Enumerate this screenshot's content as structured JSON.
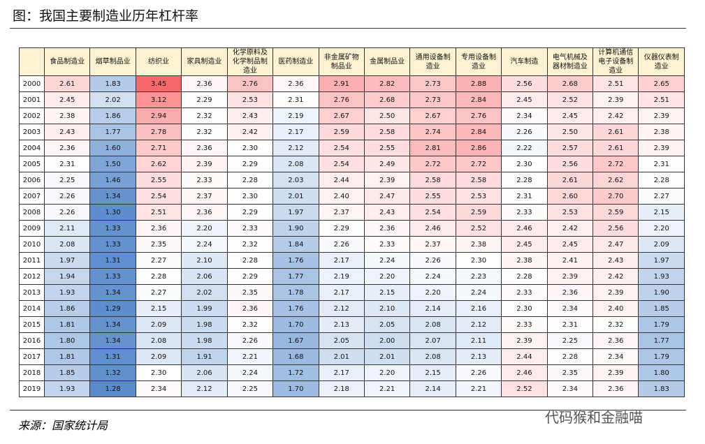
{
  "header": {
    "title": "图：我国主要制造业历年杠杆率"
  },
  "table": {
    "columns": [
      "食品制造业",
      "烟草制品业",
      "纺织业",
      "家具制造业",
      "化学原料及化学制品制造业",
      "医药制造业",
      "非金属矿物制品业",
      "金属制品业",
      "通用设备制造业",
      "专用设备制造业",
      "汽车制造",
      "电气机械及器材制造业",
      "计算机通信电子设备制造业",
      "仪器仪表制造业"
    ],
    "rows": [
      [
        "2000",
        "2.61",
        "1.83",
        "3.45",
        "2.36",
        "2.76",
        "2.36",
        "2.91",
        "2.82",
        "2.73",
        "2.88",
        "2.56",
        "2.68",
        "2.51",
        "2.65"
      ],
      [
        "2001",
        "2.45",
        "2.02",
        "3.12",
        "2.29",
        "2.53",
        "2.31",
        "2.76",
        "2.68",
        "2.73",
        "2.84",
        "2.45",
        "2.52",
        "2.39",
        "2.51"
      ],
      [
        "2002",
        "2.38",
        "1.86",
        "2.94",
        "2.32",
        "2.43",
        "2.19",
        "2.67",
        "2.50",
        "2.67",
        "2.76",
        "2.34",
        "2.45",
        "2.42",
        "2.39"
      ],
      [
        "2003",
        "2.43",
        "1.77",
        "2.78",
        "2.32",
        "2.42",
        "2.17",
        "2.59",
        "2.58",
        "2.74",
        "2.84",
        "2.26",
        "2.50",
        "2.61",
        "2.38"
      ],
      [
        "2004",
        "2.36",
        "1.60",
        "2.71",
        "2.36",
        "2.30",
        "2.12",
        "2.54",
        "2.55",
        "2.81",
        "2.86",
        "2.22",
        "2.57",
        "2.61",
        "2.39"
      ],
      [
        "2005",
        "2.31",
        "1.50",
        "2.62",
        "2.39",
        "2.29",
        "2.08",
        "2.54",
        "2.49",
        "2.72",
        "2.72",
        "2.30",
        "2.56",
        "2.72",
        "2.31"
      ],
      [
        "2006",
        "2.25",
        "1.46",
        "2.55",
        "2.33",
        "2.28",
        "2.03",
        "2.44",
        "2.39",
        "2.58",
        "2.58",
        "2.28",
        "2.61",
        "2.62",
        "2.28"
      ],
      [
        "2007",
        "2.26",
        "1.34",
        "2.54",
        "2.37",
        "2.30",
        "2.01",
        "2.40",
        "2.47",
        "2.55",
        "2.53",
        "2.31",
        "2.60",
        "2.70",
        "2.27"
      ],
      [
        "2008",
        "2.26",
        "1.30",
        "2.51",
        "2.36",
        "2.29",
        "1.97",
        "2.37",
        "2.43",
        "2.54",
        "2.59",
        "2.33",
        "2.53",
        "2.59",
        "2.15"
      ],
      [
        "2009",
        "2.11",
        "1.33",
        "2.36",
        "2.20",
        "2.33",
        "1.90",
        "2.29",
        "2.36",
        "2.46",
        "2.52",
        "2.46",
        "2.42",
        "2.56",
        "2.20"
      ],
      [
        "2010",
        "2.08",
        "1.33",
        "2.35",
        "2.24",
        "2.32",
        "1.84",
        "2.26",
        "2.33",
        "2.37",
        "2.38",
        "2.45",
        "2.45",
        "2.47",
        "2.09"
      ],
      [
        "2011",
        "1.97",
        "1.31",
        "2.27",
        "2.10",
        "2.28",
        "1.76",
        "2.17",
        "2.24",
        "2.26",
        "2.30",
        "2.38",
        "2.41",
        "2.43",
        "1.97"
      ],
      [
        "2012",
        "1.94",
        "1.33",
        "2.28",
        "2.06",
        "2.29",
        "1.77",
        "2.19",
        "2.20",
        "2.24",
        "2.23",
        "2.28",
        "2.39",
        "2.42",
        "1.93"
      ],
      [
        "2013",
        "1.93",
        "1.34",
        "2.27",
        "2.02",
        "2.35",
        "1.78",
        "2.17",
        "2.15",
        "2.20",
        "2.24",
        "2.33",
        "2.36",
        "2.39",
        "1.90"
      ],
      [
        "2014",
        "1.86",
        "1.29",
        "2.15",
        "1.99",
        "2.36",
        "1.76",
        "2.12",
        "2.10",
        "2.14",
        "2.16",
        "2.30",
        "2.34",
        "2.40",
        "1.85"
      ],
      [
        "2015",
        "1.81",
        "1.34",
        "2.09",
        "1.98",
        "2.32",
        "1.70",
        "2.13",
        "2.05",
        "2.08",
        "2.12",
        "2.33",
        "2.31",
        "2.32",
        "1.79"
      ],
      [
        "2016",
        "1.80",
        "1.34",
        "2.08",
        "1.98",
        "2.26",
        "1.67",
        "2.05",
        "2.00",
        "2.07",
        "2.11",
        "2.39",
        "2.25",
        "2.36",
        "1.77"
      ],
      [
        "2017",
        "1.81",
        "1.31",
        "2.09",
        "1.91",
        "2.21",
        "1.68",
        "2.01",
        "2.01",
        "2.08",
        "2.13",
        "2.44",
        "2.28",
        "2.34",
        "1.79"
      ],
      [
        "2018",
        "1.85",
        "1.32",
        "2.30",
        "2.06",
        "2.24",
        "1.72",
        "2.17",
        "2.20",
        "2.15",
        "2.26",
        "2.46",
        "2.35",
        "2.39",
        "1.80"
      ],
      [
        "2019",
        "1.93",
        "1.28",
        "2.34",
        "2.12",
        "2.25",
        "1.70",
        "2.18",
        "2.21",
        "2.14",
        "2.21",
        "2.52",
        "2.34",
        "2.36",
        "1.83"
      ]
    ]
  },
  "footer": {
    "source": "来源：国家统计局",
    "watermark": "代码猴和金融喵"
  }
}
